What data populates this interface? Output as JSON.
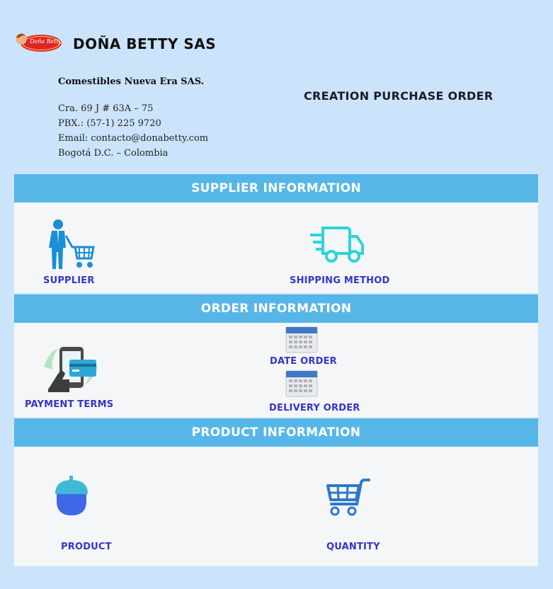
{
  "header": {
    "brand_name": "DOÑA BETTY SAS",
    "logo_text": "Doña Betty",
    "company_name": "Comestibles Nueva Era SAS.",
    "address_lines": [
      "Cra. 69 J # 63A – 75",
      "PBX.: (57-1) 225 9720",
      "Email: contacto@donabetty.com",
      "Bogotá D.C. – Colombia"
    ],
    "document_title": "CREATION PURCHASE ORDER"
  },
  "sections": {
    "supplier": {
      "title": "SUPPLIER INFORMATION",
      "supplier_label": "SUPPLIER",
      "shipping_label": "SHIPPING METHOD"
    },
    "order": {
      "title": "ORDER INFORMATION",
      "payment_label": "PAYMENT TERMS",
      "date_label": "DATE ORDER",
      "delivery_label": "DELIVERY ORDER"
    },
    "product": {
      "title": "PRODUCT INFORMATION",
      "product_label": "PRODUCT",
      "quantity_label": "QUANTITY"
    }
  },
  "colors": {
    "background": "#cbe4fb",
    "band": "#56b6e8",
    "panel": "#f4f6f8",
    "label": "#3434c8"
  },
  "icons": [
    "person-cart-icon",
    "delivery-truck-icon",
    "mobile-payment-icon",
    "calendar-icon",
    "acorn-icon",
    "shopping-cart-icon"
  ]
}
